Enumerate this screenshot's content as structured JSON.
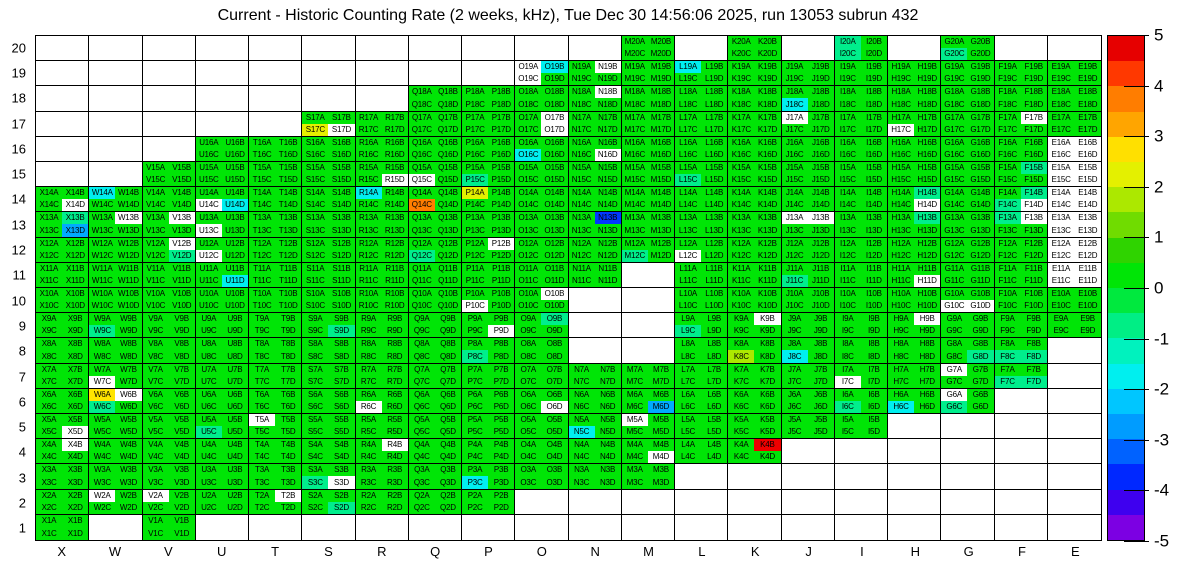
{
  "chart_data": {
    "type": "heatmap",
    "title": "Current - Historic Counting Rate (2 weeks, kHz), Tue Dec 30 14:56:06 2025, run 13053 subrun 432",
    "x_ticks": [
      "X",
      "W",
      "V",
      "U",
      "T",
      "S",
      "R",
      "Q",
      "P",
      "O",
      "N",
      "M",
      "L",
      "K",
      "J",
      "I",
      "H",
      "G",
      "F",
      "E"
    ],
    "y_ticks": [
      "20",
      "19",
      "18",
      "17",
      "16",
      "15",
      "14",
      "13",
      "12",
      "11",
      "10",
      "9",
      "8",
      "7",
      "6",
      "5",
      "4",
      "3",
      "2",
      "1"
    ],
    "quad_letters": [
      "A",
      "B",
      "C",
      "D"
    ],
    "legend_position": "right",
    "grid": "on",
    "colorbar": {
      "min": -5,
      "max": 5,
      "tick_labels": [
        "5",
        "4",
        "3",
        "2",
        "1",
        "0",
        "-1",
        "-2",
        "-3",
        "-4",
        "-5"
      ],
      "bands_top_to_bottom": [
        "#E60000",
        "#FF3800",
        "#FF7D00",
        "#FFA500",
        "#FFE000",
        "#E4F000",
        "#ACE800",
        "#70DC00",
        "#2FD300",
        "#00E506",
        "#00E93E",
        "#00EE85",
        "#00F2BE",
        "#00EFEF",
        "#00C6FF",
        "#009CFF",
        "#0062FF",
        "#0028FF",
        "#3E00EF",
        "#7C00E3"
      ]
    },
    "palette": {
      "g": "#00E506",
      "t": "#00EE8C",
      "c": "#00EFEF",
      "lb": "#00AAFF",
      "b": "#0038FF",
      "lg": "#ACE800",
      "yg": "#E4F000",
      "y": "#FFE400",
      "o": "#FF7D00",
      "r": "#EE0000",
      "w": "#FFFFFF"
    },
    "code_values": {
      "g": 0.2,
      "t": -1.2,
      "c": -1.8,
      "lb": -2.6,
      "b": -3.6,
      "lg": 1.4,
      "yg": 2.4,
      "y": 2.8,
      "o": 3.6,
      "r": 4.8,
      "w": null
    },
    "default_code": "g",
    "value_note": "quadrants A,B top row and C,D bottom row of each module; code w = white (no data)",
    "modules": {
      "X": {
        "range": [
          1,
          14
        ],
        "holes": [],
        "ex": {
          "14": {
            "D": "w"
          },
          "13": {
            "B": "t",
            "D": "lb"
          },
          "5": {
            "D": "w"
          },
          "4": {
            "B": "w"
          }
        }
      },
      "W": {
        "range": [
          2,
          14
        ],
        "holes": [],
        "ex": {
          "14": {
            "A": "c"
          },
          "13": {
            "B": "w"
          },
          "9": {
            "C": "t"
          },
          "7": {
            "C": "w"
          },
          "6": {
            "A": "y",
            "B": "w",
            "C": "t"
          },
          "2": {
            "A": "w"
          }
        }
      },
      "V": {
        "range": [
          1,
          15
        ],
        "holes": [],
        "ex": {
          "13": {
            "B": "w"
          },
          "12": {
            "B": "w",
            "D": "t"
          },
          "2": {
            "A": "w"
          }
        }
      },
      "U": {
        "range": [
          2,
          16
        ],
        "holes": [],
        "ex": {
          "14": {
            "C": "w",
            "D": "c"
          },
          "13": {
            "C": "w"
          },
          "12": {
            "C": "w"
          },
          "11": {
            "D": "c"
          },
          "5": {
            "C": "t"
          }
        }
      },
      "T": {
        "range": [
          2,
          16
        ],
        "holes": [],
        "ex": {
          "5": {
            "A": "w"
          },
          "2": {
            "B": "w"
          }
        }
      },
      "S": {
        "range": [
          2,
          17
        ],
        "holes": [],
        "ex": {
          "17": {
            "C": "yg",
            "D": "w"
          },
          "9": {
            "D": "t"
          },
          "3": {
            "C": "t",
            "D": "w"
          },
          "2": {
            "D": "t"
          }
        }
      },
      "R": {
        "range": [
          2,
          17
        ],
        "holes": [],
        "ex": {
          "15": {
            "D": "w"
          },
          "14": {
            "A": "c"
          },
          "6": {
            "C": "w"
          },
          "4": {
            "B": "w"
          }
        }
      },
      "Q": {
        "range": [
          2,
          18
        ],
        "holes": [],
        "ex": {
          "15": {
            "C": "w"
          },
          "14": {
            "C": "o"
          },
          "12": {
            "C": "t"
          }
        }
      },
      "P": {
        "range": [
          2,
          18
        ],
        "holes": [],
        "ex": {
          "15": {
            "C": "t"
          },
          "14": {
            "A": "yg"
          },
          "12": {
            "B": "w"
          },
          "10": {
            "C": "w"
          },
          "9": {
            "D": "w"
          },
          "8": {
            "C": "t"
          },
          "3": {
            "C": "c"
          }
        }
      },
      "O": {
        "range": [
          3,
          19
        ],
        "holes": [],
        "ex": {
          "19": {
            "A": "w",
            "B": "c",
            "C": "w"
          },
          "17": {
            "B": "w",
            "D": "w"
          },
          "16": {
            "C": "c"
          },
          "10": {
            "B": "w"
          },
          "9": {
            "B": "t"
          },
          "6": {
            "D": "w"
          }
        }
      },
      "N": {
        "range": [
          3,
          19
        ],
        "holes": [
          8,
          9,
          10
        ],
        "ex": {
          "19": {
            "B": "w"
          },
          "18": {
            "B": "w"
          },
          "16": {
            "D": "w"
          },
          "13": {
            "B": "b"
          },
          "5": {
            "C": "c"
          }
        }
      },
      "M": {
        "range": [
          3,
          20
        ],
        "holes": [
          8,
          9,
          10,
          11
        ],
        "ex": {
          "12": {
            "C": "t"
          },
          "6": {
            "D": "lb"
          },
          "5": {
            "A": "w"
          },
          "4": {
            "D": "w"
          }
        }
      },
      "L": {
        "range": [
          4,
          19
        ],
        "holes": [],
        "ex": {
          "19": {
            "A": "c"
          },
          "15": {
            "C": "t"
          },
          "12": {
            "C": "w"
          },
          "9": {
            "C": "t"
          }
        }
      },
      "K": {
        "range": [
          4,
          20
        ],
        "holes": [],
        "ex": {
          "9": {
            "B": "w"
          },
          "8": {
            "C": "lg"
          },
          "4": {
            "B": "r"
          }
        }
      },
      "J": {
        "range": [
          5,
          19
        ],
        "holes": [],
        "ex": {
          "18": {
            "C": "c"
          },
          "17": {
            "A": "w"
          },
          "13": {
            "A": "w",
            "B": "w"
          },
          "11": {
            "C": "t"
          },
          "8": {
            "C": "c"
          }
        }
      },
      "I": {
        "range": [
          5,
          20
        ],
        "holes": [],
        "ex": {
          "20": {
            "A": "t",
            "C": "t"
          },
          "7": {
            "C": "w"
          },
          "6": {
            "C": "t"
          }
        }
      },
      "H": {
        "range": [
          6,
          19
        ],
        "holes": [],
        "ex": {
          "17": {
            "C": "w"
          },
          "14": {
            "B": "t",
            "D": "w"
          },
          "13": {
            "B": "t"
          },
          "11": {
            "D": "w"
          },
          "9": {
            "B": "w"
          },
          "6": {
            "C": "c"
          }
        }
      },
      "G": {
        "range": [
          6,
          20
        ],
        "holes": [],
        "ex": {
          "20": {
            "C": "t"
          },
          "10": {
            "C": "w",
            "D": "w"
          },
          "8": {
            "D": "t"
          },
          "7": {
            "A": "w"
          },
          "6": {
            "A": "w",
            "C": "t"
          }
        }
      },
      "F": {
        "range": [
          7,
          19
        ],
        "holes": [],
        "ex": {
          "17": {
            "B": "w"
          },
          "15": {
            "B": "t"
          },
          "14": {
            "B": "t",
            "C": "t",
            "D": "w"
          },
          "13": {
            "A": "t",
            "B": "w"
          },
          "8": {
            "C": "t",
            "D": "t"
          },
          "7": {
            "C": "t",
            "D": "t"
          }
        }
      },
      "E": {
        "range": [
          9,
          19
        ],
        "holes": [],
        "ex": {
          "16": {
            "A": "w",
            "B": "w",
            "C": "w",
            "D": "w"
          },
          "15": {
            "A": "w",
            "B": "w",
            "C": "w",
            "D": "w"
          },
          "14": {
            "A": "w",
            "B": "w",
            "C": "w",
            "D": "w"
          },
          "13": {
            "A": "w",
            "B": "w",
            "C": "w",
            "D": "w"
          },
          "12": {
            "A": "w",
            "B": "w",
            "C": "w",
            "D": "w"
          },
          "11": {
            "A": "w",
            "B": "w",
            "C": "w",
            "D": "w"
          }
        }
      }
    }
  }
}
